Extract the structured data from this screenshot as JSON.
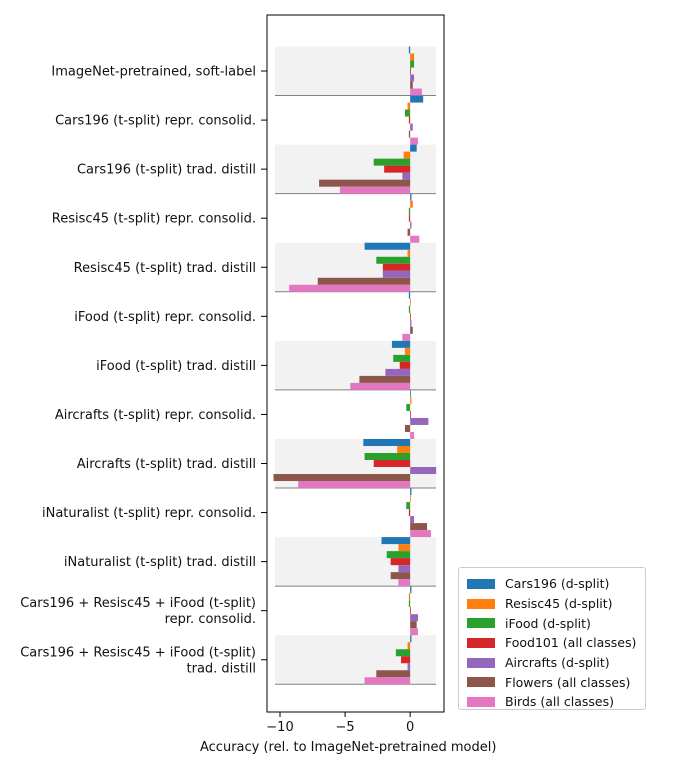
{
  "chart_data": {
    "type": "bar",
    "orientation": "horizontal",
    "xlabel": "Accuracy (rel. to ImageNet-pretrained model)",
    "xlim": [
      -11,
      2.6
    ],
    "xticks": [
      -10,
      -5,
      0
    ],
    "xtick_labels": [
      "−10",
      "−5",
      "0"
    ],
    "alternating_group_background": true,
    "legend_position": "lower-right outside",
    "categories": [
      [
        "ImageNet-pretrained, soft-label"
      ],
      [
        "Cars196 (t-split) repr. consolid."
      ],
      [
        "Cars196 (t-split) trad. distill"
      ],
      [
        "Resisc45 (t-split) repr. consolid."
      ],
      [
        "Resisc45 (t-split) trad. distill"
      ],
      [
        "iFood (t-split) repr. consolid."
      ],
      [
        "iFood (t-split) trad. distill"
      ],
      [
        "Aircrafts (t-split) repr. consolid."
      ],
      [
        "Aircrafts (t-split) trad. distill"
      ],
      [
        "iNaturalist (t-split) repr. consolid."
      ],
      [
        "iNaturalist (t-split) trad. distill"
      ],
      [
        "Cars196 + Resisc45 + iFood (t-split)",
        "repr. consolid."
      ],
      [
        "Cars196 + Resisc45 + iFood (t-split)",
        "trad. distill"
      ]
    ],
    "series": [
      {
        "name": "Cars196 (d-split)",
        "color": "#1f77b4",
        "values": [
          -0.1,
          1.0,
          0.5,
          0.1,
          -3.5,
          -0.1,
          -1.4,
          0.0,
          -3.6,
          0.1,
          -2.2,
          0.1,
          0.1
        ]
      },
      {
        "name": "Resisc45 (d-split)",
        "color": "#ff7f0e",
        "values": [
          0.3,
          -0.2,
          -0.5,
          0.2,
          -0.2,
          0.0,
          -0.4,
          0.1,
          -1.0,
          0.0,
          -0.9,
          -0.1,
          -0.2
        ]
      },
      {
        "name": "iFood (d-split)",
        "color": "#2ca02c",
        "values": [
          0.3,
          -0.4,
          -2.8,
          -0.1,
          -2.6,
          -0.1,
          -1.3,
          -0.3,
          -3.5,
          -0.3,
          -1.8,
          -0.1,
          -1.1
        ]
      },
      {
        "name": "Food101 (all classes)",
        "color": "#d62728",
        "values": [
          0.0,
          -0.1,
          -2.0,
          -0.1,
          -2.1,
          0.0,
          -0.8,
          0.0,
          -2.8,
          -0.1,
          -1.5,
          0.0,
          -0.7
        ]
      },
      {
        "name": "Aircrafts (d-split)",
        "color": "#9467bd",
        "values": [
          0.3,
          0.2,
          -0.6,
          0.1,
          -2.1,
          0.1,
          -1.9,
          1.4,
          2.0,
          0.3,
          -0.9,
          0.6,
          -0.2
        ]
      },
      {
        "name": "Flowers (all classes)",
        "color": "#8c564b",
        "values": [
          0.2,
          -0.1,
          -7.0,
          -0.2,
          -7.1,
          0.2,
          -3.9,
          -0.4,
          -10.5,
          1.3,
          -1.5,
          0.5,
          -2.6
        ]
      },
      {
        "name": "Birds (all classes)",
        "color": "#e377c2",
        "values": [
          0.9,
          0.6,
          -5.4,
          0.7,
          -9.3,
          -0.6,
          -4.6,
          0.3,
          -8.6,
          1.6,
          -0.9,
          0.6,
          -3.5
        ]
      }
    ]
  }
}
